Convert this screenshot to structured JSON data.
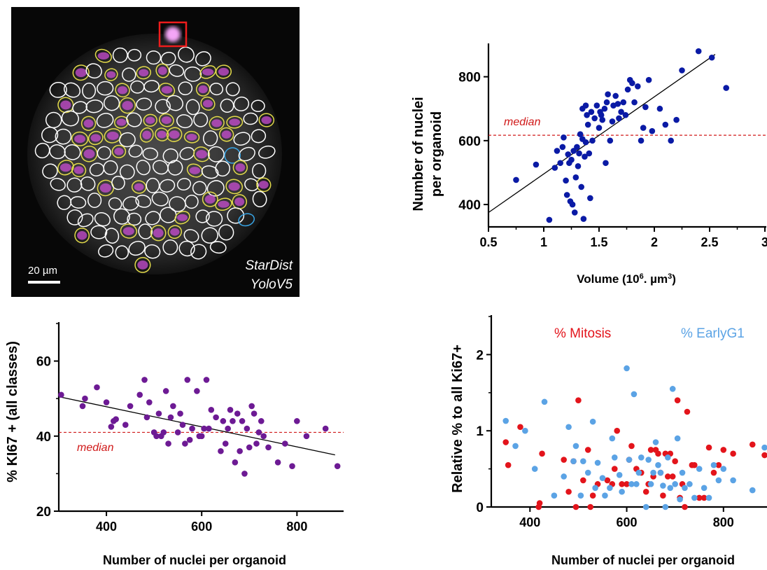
{
  "micrograph": {
    "scalebar_label": "20 µm",
    "method_line1": "StarDist",
    "method_line2": "YoloV5",
    "colors": {
      "background": "#070707",
      "nucleus_outline": "#ffffff",
      "ki67_outline": "#e3db4a",
      "early_outline": "#38a6e8",
      "mitosis_box": "#ee1c1c",
      "ki67_stain": "#c94ed3"
    }
  },
  "chart_data": [
    {
      "type": "scatter",
      "id": "volume_vs_nuclei",
      "xlabel": "Volume (10",
      "xlabel_sup": "6",
      "xlabel_mid": ". µm",
      "xlabel_sup2": "3",
      "xlabel_end": ")",
      "ylabel_line1": "Number of nuclei",
      "ylabel_line2": "per organoid",
      "xlim": [
        0.5,
        3
      ],
      "ylim": [
        330,
        900
      ],
      "xticks": [
        "0.5",
        "1",
        "1.5",
        "2",
        "2.5",
        "3"
      ],
      "yticks": [
        "400",
        "600",
        "800"
      ],
      "median_label": "median",
      "median_value": 617,
      "color": "#0a1aa5",
      "fit": [
        [
          0.5,
          375
        ],
        [
          2.55,
          870
        ]
      ],
      "x": [
        0.75,
        0.93,
        1.05,
        1.1,
        1.12,
        1.15,
        1.17,
        1.18,
        1.2,
        1.21,
        1.22,
        1.23,
        1.24,
        1.25,
        1.26,
        1.27,
        1.28,
        1.29,
        1.3,
        1.31,
        1.32,
        1.33,
        1.34,
        1.35,
        1.35,
        1.36,
        1.37,
        1.38,
        1.38,
        1.39,
        1.4,
        1.41,
        1.42,
        1.43,
        1.44,
        1.46,
        1.48,
        1.5,
        1.51,
        1.52,
        1.53,
        1.55,
        1.56,
        1.57,
        1.58,
        1.6,
        1.62,
        1.63,
        1.65,
        1.67,
        1.68,
        1.7,
        1.72,
        1.74,
        1.76,
        1.78,
        1.8,
        1.82,
        1.85,
        1.88,
        1.9,
        1.92,
        1.95,
        1.98,
        2.05,
        2.1,
        2.15,
        2.2,
        2.25,
        2.4,
        2.52,
        2.65
      ],
      "y": [
        477,
        525,
        352,
        515,
        568,
        530,
        580,
        610,
        475,
        430,
        557,
        530,
        410,
        540,
        400,
        568,
        375,
        485,
        580,
        520,
        560,
        620,
        455,
        605,
        700,
        355,
        550,
        595,
        710,
        680,
        650,
        560,
        420,
        690,
        600,
        670,
        710,
        640,
        690,
        680,
        665,
        700,
        530,
        720,
        745,
        600,
        660,
        710,
        740,
        715,
        670,
        690,
        720,
        680,
        760,
        790,
        780,
        720,
        770,
        600,
        640,
        705,
        790,
        630,
        700,
        650,
        600,
        665,
        820,
        880,
        860,
        765
      ]
    },
    {
      "type": "scatter",
      "id": "nuclei_vs_ki67",
      "xlabel": "Number of nuclei per organoid",
      "ylabel": "%  KI67 + (all classes)",
      "xlim": [
        300,
        895
      ],
      "ylim": [
        20,
        70
      ],
      "xticks": [
        "400",
        "600",
        "800"
      ],
      "yticks": [
        "20",
        "40",
        "60"
      ],
      "median_label": "median",
      "median_value": 41,
      "color": "#6d1a94",
      "fit": [
        [
          300,
          50.5
        ],
        [
          880,
          35
        ]
      ],
      "x": [
        305,
        350,
        355,
        380,
        400,
        410,
        415,
        420,
        440,
        450,
        470,
        480,
        485,
        490,
        500,
        505,
        510,
        515,
        520,
        525,
        530,
        535,
        540,
        550,
        555,
        560,
        565,
        570,
        575,
        580,
        590,
        595,
        600,
        605,
        610,
        615,
        620,
        630,
        640,
        645,
        650,
        655,
        660,
        665,
        670,
        675,
        680,
        685,
        690,
        695,
        700,
        705,
        710,
        715,
        720,
        725,
        730,
        740,
        760,
        775,
        790,
        800,
        820,
        860,
        885
      ],
      "y": [
        51,
        48,
        50,
        53,
        49,
        42.5,
        44,
        44.5,
        43,
        48,
        51,
        55,
        45,
        49,
        41,
        40,
        46,
        40,
        41,
        52,
        38,
        45,
        48,
        41,
        46,
        43,
        38,
        55,
        39,
        42,
        52,
        40,
        40,
        42,
        55,
        42,
        47,
        45,
        36,
        44,
        38,
        42,
        47,
        44,
        33,
        46,
        36,
        44,
        30,
        42,
        37,
        48,
        46,
        38,
        41,
        44,
        40,
        37,
        33,
        38,
        32,
        44,
        40,
        42,
        32
      ]
    },
    {
      "type": "scatter",
      "id": "nuclei_vs_relative",
      "ylabel": "Relative % to all Ki67+",
      "xlabel": "Number of nuclei per organoid",
      "xlim": [
        320,
        890
      ],
      "ylim": [
        0,
        2.5
      ],
      "xticks": [
        "400",
        "600",
        "800"
      ],
      "yticks": [
        "0",
        "1",
        "2"
      ],
      "series": [
        {
          "name": "% Mitosis",
          "color": "#e3141b",
          "x": [
            350,
            355,
            380,
            418,
            420,
            425,
            470,
            480,
            490,
            495,
            500,
            510,
            520,
            525,
            530,
            540,
            560,
            570,
            575,
            580,
            590,
            600,
            605,
            610,
            620,
            630,
            640,
            645,
            650,
            655,
            660,
            665,
            670,
            675,
            680,
            685,
            690,
            695,
            700,
            705,
            710,
            715,
            720,
            725,
            735,
            740,
            750,
            760,
            770,
            780,
            790,
            800,
            820,
            860,
            885
          ],
          "y": [
            0.85,
            0.55,
            1.05,
            0.0,
            0.05,
            0.7,
            0.62,
            0.2,
            0.6,
            0.0,
            1.4,
            0.35,
            0.75,
            0.0,
            0.15,
            0.3,
            0.35,
            0.3,
            0.5,
            1.0,
            0.3,
            0.3,
            0.62,
            0.8,
            0.5,
            0.45,
            0.2,
            0.3,
            0.75,
            0.4,
            0.75,
            0.7,
            0.45,
            0.15,
            0.7,
            0.4,
            0.7,
            0.4,
            0.6,
            1.4,
            0.12,
            0.3,
            0.0,
            1.25,
            0.55,
            0.55,
            0.12,
            0.12,
            0.78,
            0.45,
            0.55,
            0.75,
            0.7,
            0.82,
            0.68
          ]
        },
        {
          "name": "% EarlyG1",
          "color": "#5ba3e5",
          "x": [
            350,
            370,
            390,
            410,
            430,
            450,
            470,
            480,
            490,
            495,
            505,
            510,
            520,
            530,
            535,
            540,
            550,
            555,
            565,
            570,
            575,
            585,
            590,
            600,
            605,
            610,
            615,
            620,
            625,
            630,
            640,
            645,
            650,
            655,
            660,
            665,
            670,
            675,
            680,
            685,
            690,
            695,
            700,
            705,
            710,
            715,
            720,
            730,
            740,
            750,
            760,
            770,
            780,
            790,
            800,
            820,
            860,
            885
          ],
          "y": [
            1.13,
            0.8,
            1.0,
            0.5,
            1.38,
            0.15,
            0.4,
            1.05,
            0.6,
            0.8,
            0.15,
            0.6,
            0.45,
            1.12,
            0.25,
            0.58,
            0.38,
            0.15,
            0.25,
            0.9,
            0.65,
            0.42,
            0.2,
            1.82,
            0.62,
            0.3,
            1.48,
            0.3,
            0.45,
            0.65,
            0.0,
            0.62,
            0.3,
            0.45,
            0.85,
            0.55,
            0.45,
            0.28,
            0.0,
            0.65,
            0.25,
            1.55,
            0.3,
            0.9,
            0.1,
            0.45,
            0.25,
            0.3,
            0.12,
            0.5,
            0.25,
            0.12,
            0.55,
            0.35,
            0.5,
            0.35,
            0.22,
            0.78
          ]
        }
      ]
    }
  ]
}
